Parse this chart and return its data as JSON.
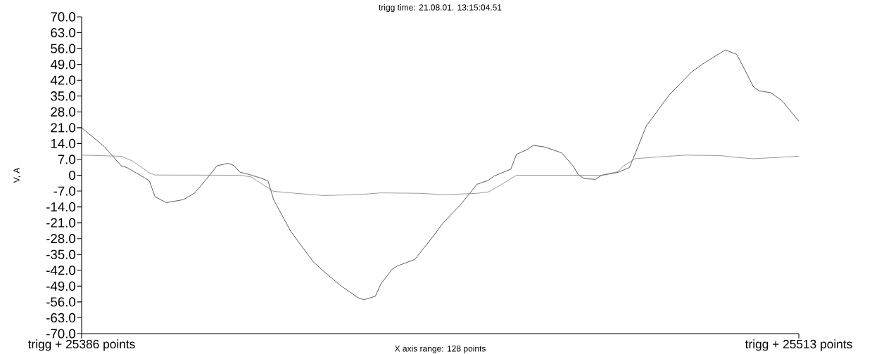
{
  "chart_data": {
    "type": "line",
    "title": "trigg time: 21.08.01. 13:15:04.51",
    "xlabel": "X axis range: 128 points",
    "ylabel": "V, A",
    "xlim": [
      25386,
      25513
    ],
    "xticks": [
      {
        "value": 25386,
        "label": "trigg + 25386 points"
      },
      {
        "value": 25513,
        "label": "trigg + 25513 points"
      }
    ],
    "ylim": [
      -70,
      70
    ],
    "yticks": [
      {
        "value": -70,
        "label": "-70.0"
      },
      {
        "value": -63,
        "label": "-63.0"
      },
      {
        "value": -56,
        "label": "-56.0"
      },
      {
        "value": -49,
        "label": "-49.0"
      },
      {
        "value": -42,
        "label": "-42.0"
      },
      {
        "value": -35,
        "label": "-35.0"
      },
      {
        "value": -28,
        "label": "-28.0"
      },
      {
        "value": -21,
        "label": "-21.0"
      },
      {
        "value": -14,
        "label": "-14.0"
      },
      {
        "value": -7,
        "label": "-7.0"
      },
      0,
      {
        "value": 7,
        "label": "7.0"
      },
      {
        "value": 14,
        "label": "14.0"
      },
      {
        "value": 21,
        "label": "21.0"
      },
      {
        "value": 28,
        "label": "28.0"
      },
      {
        "value": 35,
        "label": "35.0"
      },
      {
        "value": 42,
        "label": "42.0"
      },
      {
        "value": 49,
        "label": "49.0"
      },
      {
        "value": 56,
        "label": "56.0"
      },
      {
        "value": 63,
        "label": "63.0"
      },
      {
        "value": 70,
        "label": "70.0"
      }
    ],
    "marker": "none",
    "line_style": "solid",
    "series": [
      {
        "color": "#333333",
        "x": [
          25386,
          25390,
          25393,
          25394,
          25397,
          25398,
          25399,
          25401,
          25404,
          25406,
          25408,
          25410,
          25412,
          25413,
          25414,
          25416,
          25418,
          25419,
          25420,
          25423,
          25427,
          25429,
          25432,
          25435,
          25436,
          25438,
          25439,
          25441,
          25442,
          25445,
          25448,
          25450,
          25453,
          25456,
          25458,
          25459,
          25462,
          25463,
          25465,
          25466,
          25468,
          25471,
          25473,
          25474,
          25475,
          25477,
          25478,
          25481,
          25483,
          25484,
          25486,
          25490,
          25494,
          25496,
          25500,
          25502,
          25503,
          25505,
          25506,
          25508,
          25510,
          25513
        ],
        "values": [
          21,
          12.7,
          4.2,
          3.4,
          -0.9,
          -2.5,
          -9.5,
          -12.1,
          -10.8,
          -7.9,
          -2,
          4.2,
          5.3,
          4.2,
          1.4,
          0.1,
          -1.5,
          -2.5,
          -10.8,
          -24.7,
          -38.2,
          -42.8,
          -49,
          -54.2,
          -55,
          -53.5,
          -48,
          -41.5,
          -40,
          -37.2,
          -27.8,
          -21.1,
          -13.3,
          -4,
          -2.3,
          -0.4,
          2.7,
          9.2,
          11.5,
          13.2,
          12.5,
          9.9,
          4.2,
          0.1,
          -1.5,
          -1.8,
          -0.1,
          1.3,
          3.4,
          9.4,
          21.8,
          35.3,
          45.6,
          49.2,
          55.4,
          53.4,
          48.7,
          38.9,
          37.3,
          36.5,
          33,
          23.9
        ]
      },
      {
        "color": "#808080",
        "x": [
          25386,
          25393,
          25395,
          25398,
          25399,
          25414,
          25416,
          25418,
          25420,
          25424,
          25429,
          25436,
          25439,
          25446,
          25450,
          25456,
          25458,
          25460,
          25463,
          25466,
          25478,
          25481,
          25482,
          25484,
          25488,
          25493,
          25499,
          25502,
          25505,
          25513
        ],
        "values": [
          8.9,
          8.4,
          6.3,
          1.1,
          0.1,
          0,
          -0.7,
          -4,
          -7.1,
          -8,
          -9,
          -8.4,
          -7.8,
          -8,
          -8.6,
          -8,
          -7.4,
          -4.6,
          0,
          0,
          0,
          1.6,
          4.2,
          7.3,
          8.1,
          8.9,
          8.7,
          7.9,
          7.3,
          8.4
        ]
      }
    ]
  }
}
